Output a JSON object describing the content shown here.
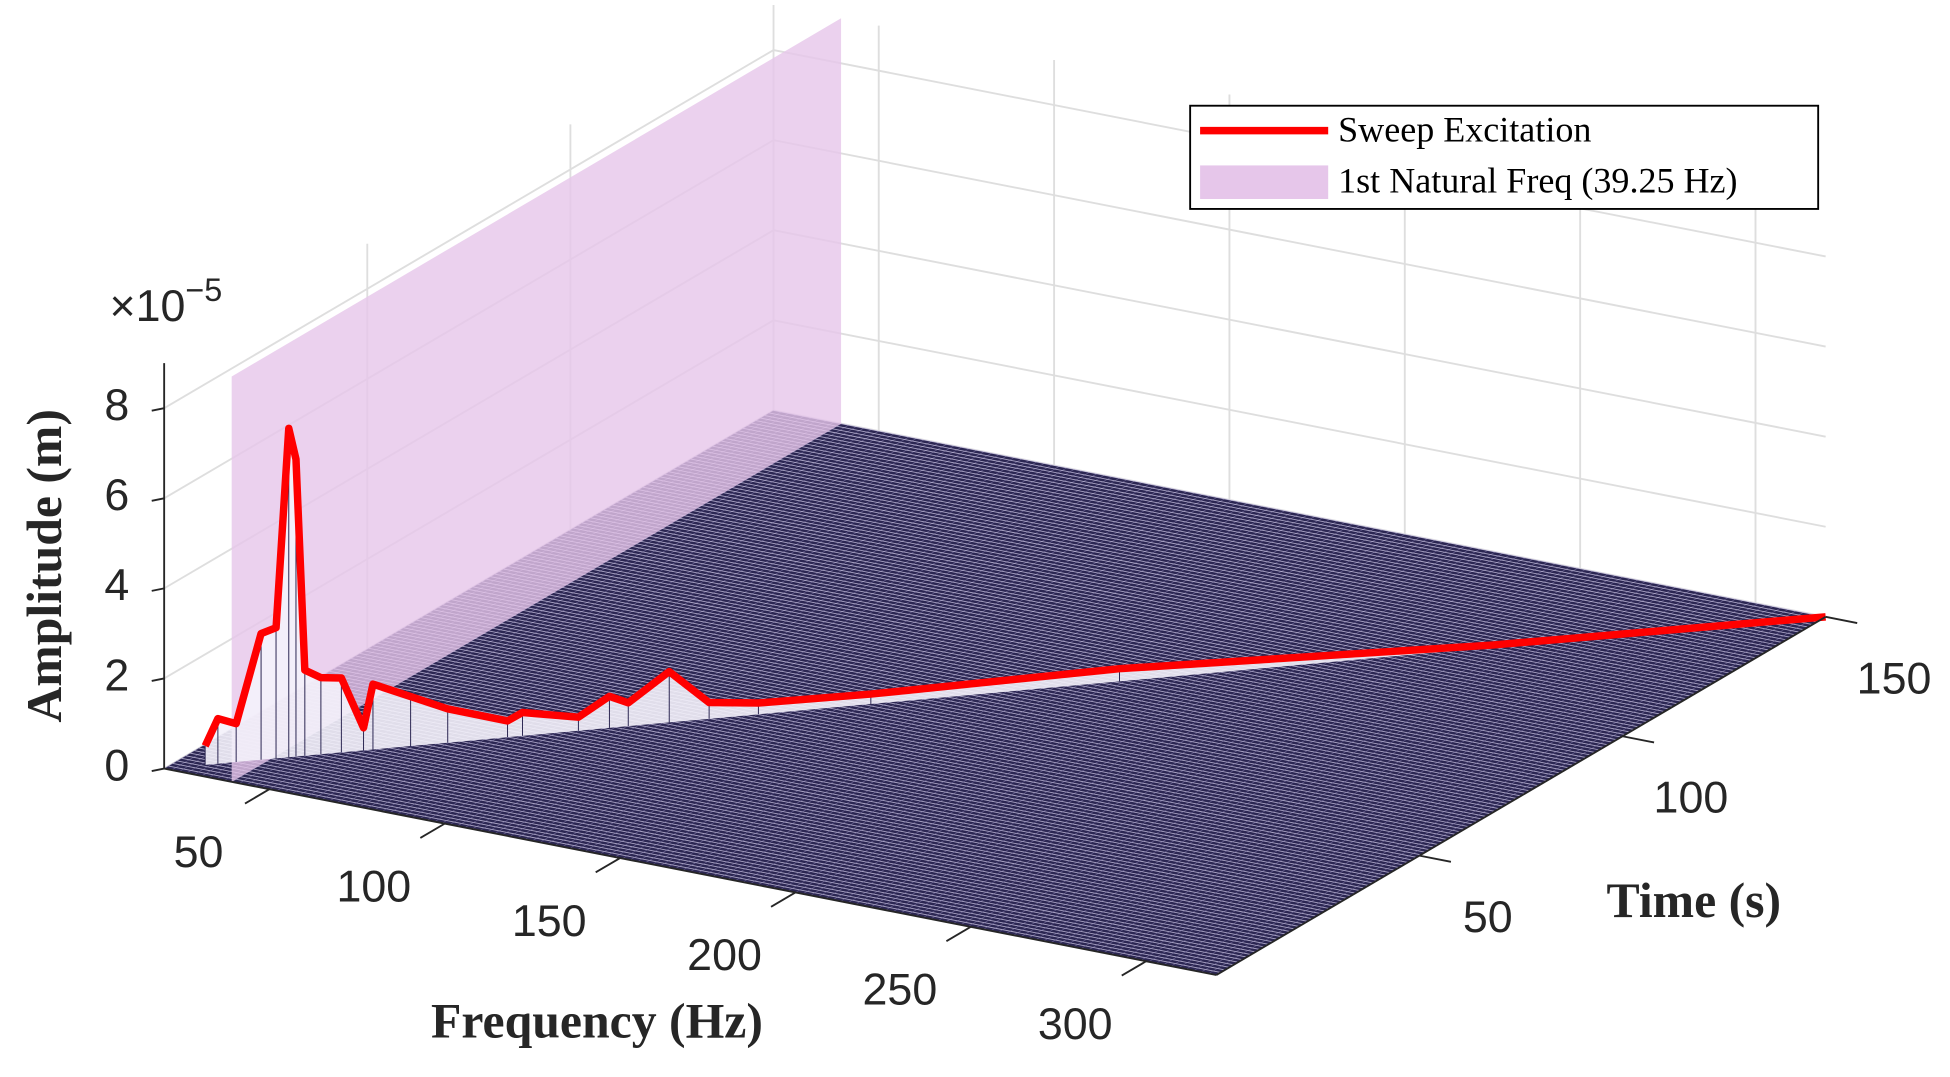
{
  "chart_data": {
    "type": "waterfall3d",
    "x_label": "Frequency (Hz)",
    "y_label": "Time (s)",
    "z_label": "Amplitude (m)",
    "z_multiplier": {
      "base": "×10",
      "exponent": "−5"
    },
    "xlim": [
      20,
      320
    ],
    "xticks": [
      50,
      100,
      150,
      200,
      250,
      300
    ],
    "ylim": [
      0,
      150
    ],
    "yticks": [
      50,
      100,
      150
    ],
    "zlim": [
      0,
      9
    ],
    "zticks": [
      0,
      2,
      4,
      6,
      8
    ],
    "grid": true,
    "surface_color": "#2b2652",
    "series": [
      {
        "name": "Sweep Excitation",
        "color": "#ff0000",
        "x": [
          27.4,
          29.7,
          33,
          37.5,
          40.2,
          42.5,
          43.8,
          45.4,
          48.3,
          52,
          56,
          57.7,
          64.5,
          71.2,
          82,
          84.7,
          94.8,
          100.4,
          103.8,
          111.2,
          118.4,
          127.3,
          147.6,
          192.5,
          259.8,
          320
        ],
        "y": [
          3.7,
          4.85,
          6.5,
          8.75,
          10.1,
          11.25,
          11.9,
          12.7,
          14.15,
          16,
          18,
          18.85,
          22.25,
          25.6,
          31,
          32.35,
          37.4,
          40.2,
          41.9,
          45.6,
          49.2,
          53.65,
          63.8,
          86.25,
          119.9,
          150
        ],
        "values": [
          0.42,
          1.0,
          0.85,
          2.8,
          2.9,
          7.3,
          6.6,
          1.9,
          1.7,
          1.65,
          0.5,
          1.45,
          1.1,
          0.75,
          0.36,
          0.52,
          0.3,
          0.7,
          0.52,
          1.13,
          0.36,
          0.25,
          0.22,
          0.28,
          0.05,
          0
        ]
      }
    ],
    "natural_frequency": {
      "name": "1st Natural Freq (39.25 Hz)",
      "x": 39.25,
      "color": "#e6c6ea"
    },
    "legend": "upper right"
  }
}
